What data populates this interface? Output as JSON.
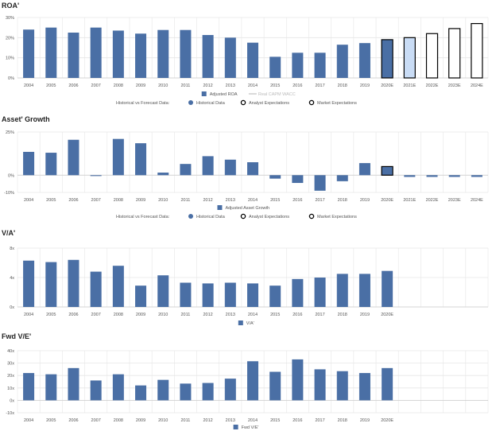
{
  "colors": {
    "bar": "#4a6fa5",
    "forecast_light": "#c9dcf5",
    "grid": "#e6e6e6",
    "text": "#555555",
    "title": "#222222",
    "wacc_line": "#b5b5b5"
  },
  "chart_data": [
    {
      "id": "roa",
      "type": "bar",
      "title": "ROA'",
      "categories": [
        "2004",
        "2005",
        "2006",
        "2007",
        "2008",
        "2009",
        "2010",
        "2011",
        "2012",
        "2013",
        "2014",
        "2015",
        "2016",
        "2017",
        "2018",
        "2019",
        "2020E",
        "2021E",
        "2022E",
        "2023E",
        "2024E"
      ],
      "values": [
        24,
        25,
        22.5,
        25,
        23.5,
        22,
        23.8,
        23.8,
        21.3,
        20,
        17.5,
        10.5,
        12.5,
        12.5,
        16.5,
        17.3,
        19,
        20,
        22,
        24.5,
        27
      ],
      "styles": [
        "hist",
        "hist",
        "hist",
        "hist",
        "hist",
        "hist",
        "hist",
        "hist",
        "hist",
        "hist",
        "hist",
        "hist",
        "hist",
        "hist",
        "hist",
        "hist",
        "analyst",
        "analyst-light",
        "market",
        "market",
        "market"
      ],
      "ylim": [
        0,
        30
      ],
      "yticks": [
        0,
        10,
        20,
        30
      ],
      "ytick_labels": [
        "0%",
        "10%",
        "20%",
        "30%"
      ],
      "legend_series": [
        {
          "label": "Adjusted ROA",
          "marker": "square"
        },
        {
          "label": "Real CAPM WACC",
          "marker": "line"
        }
      ],
      "forecast_legend": {
        "label": "Historical vs Forecast Data:",
        "items": [
          "Historical Data",
          "Analyst Expectations",
          "Market Expectations"
        ]
      }
    },
    {
      "id": "asset_growth",
      "type": "bar",
      "title": "Asset' Growth",
      "categories": [
        "2004",
        "2005",
        "2006",
        "2007",
        "2008",
        "2009",
        "2010",
        "2011",
        "2012",
        "2013",
        "2014",
        "2015",
        "2016",
        "2017",
        "2018",
        "2019",
        "2020E",
        "2021E",
        "2022E",
        "2023E",
        "2024E"
      ],
      "values": [
        13.5,
        13,
        20.5,
        -0.5,
        21,
        18.5,
        1.5,
        6.5,
        11,
        9,
        7.5,
        -2,
        -4.5,
        -9,
        -3.5,
        7,
        5,
        -1,
        -1,
        -1,
        -1
      ],
      "styles": [
        "hist",
        "hist",
        "hist",
        "hist",
        "hist",
        "hist",
        "hist",
        "hist",
        "hist",
        "hist",
        "hist",
        "hist",
        "hist",
        "hist",
        "hist",
        "hist",
        "analyst",
        "hist",
        "hist",
        "hist",
        "hist"
      ],
      "ylim": [
        -10,
        25
      ],
      "yticks": [
        -10,
        0,
        25
      ],
      "ytick_labels": [
        "-10%",
        "0%",
        "25%"
      ],
      "legend_series": [
        {
          "label": "Adjusted Asset Growth",
          "marker": "square"
        }
      ],
      "forecast_legend": {
        "label": "Historical vs Forecast Data:",
        "items": [
          "Historical Data",
          "Analyst Expectations",
          "Market Expectations"
        ]
      }
    },
    {
      "id": "va",
      "type": "bar",
      "title": "V/A'",
      "categories": [
        "2004",
        "2005",
        "2006",
        "2007",
        "2008",
        "2009",
        "2010",
        "2011",
        "2012",
        "2013",
        "2014",
        "2015",
        "2016",
        "2017",
        "2018",
        "2019",
        "2020E"
      ],
      "values": [
        6.3,
        6.1,
        6.4,
        4.8,
        5.6,
        2.9,
        4.3,
        3.3,
        3.2,
        3.3,
        3.2,
        2.9,
        3.8,
        4.0,
        4.5,
        4.5,
        4.9
      ],
      "ylim": [
        0,
        8
      ],
      "yticks": [
        0,
        4,
        8
      ],
      "ytick_labels": [
        "0x",
        "4x",
        "8x"
      ],
      "legend_series": [
        {
          "label": "V/A'",
          "marker": "square"
        }
      ]
    },
    {
      "id": "fwd_ve",
      "type": "bar",
      "title": "Fwd V/E'",
      "categories": [
        "2004",
        "2005",
        "2006",
        "2007",
        "2008",
        "2009",
        "2010",
        "2011",
        "2012",
        "2013",
        "2014",
        "2015",
        "2016",
        "2017",
        "2018",
        "2019",
        "2020E"
      ],
      "values": [
        22,
        21,
        26,
        16,
        21,
        12,
        16.5,
        13.5,
        14,
        17.5,
        31.5,
        23,
        33,
        25,
        23.5,
        22,
        26
      ],
      "ylim": [
        -10,
        40
      ],
      "yticks": [
        -10,
        0,
        10,
        20,
        30,
        40
      ],
      "ytick_labels": [
        "-10x",
        "0x",
        "10x",
        "20x",
        "30x",
        "40x"
      ],
      "legend_series": [
        {
          "label": "Fwd V/E'",
          "marker": "square"
        }
      ]
    }
  ]
}
